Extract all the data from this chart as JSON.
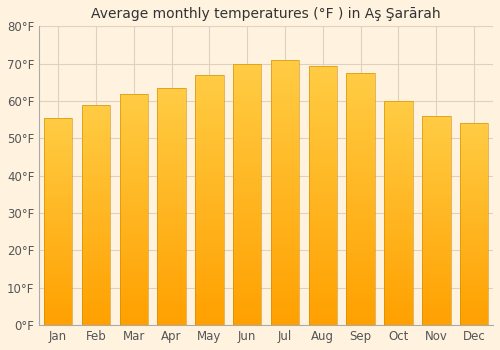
{
  "title": "Average monthly temperatures (°F ) in Aş Şarārah",
  "months": [
    "Jan",
    "Feb",
    "Mar",
    "Apr",
    "May",
    "Jun",
    "Jul",
    "Aug",
    "Sep",
    "Oct",
    "Nov",
    "Dec"
  ],
  "values": [
    55.5,
    59,
    62,
    63.5,
    67,
    70,
    71,
    69.5,
    67.5,
    60,
    56,
    54
  ],
  "ylim": [
    0,
    80
  ],
  "yticks": [
    0,
    10,
    20,
    30,
    40,
    50,
    60,
    70,
    80
  ],
  "ytick_labels": [
    "0°F",
    "10°F",
    "20°F",
    "30°F",
    "40°F",
    "50°F",
    "60°F",
    "70°F",
    "80°F"
  ],
  "bar_color": "#FFA726",
  "background_color": "#FFF3E0",
  "plot_bg_color": "#FFF3E0",
  "grid_color": "#E0D0C0",
  "title_fontsize": 10,
  "tick_fontsize": 8.5,
  "spine_color": "#AAAAAA"
}
